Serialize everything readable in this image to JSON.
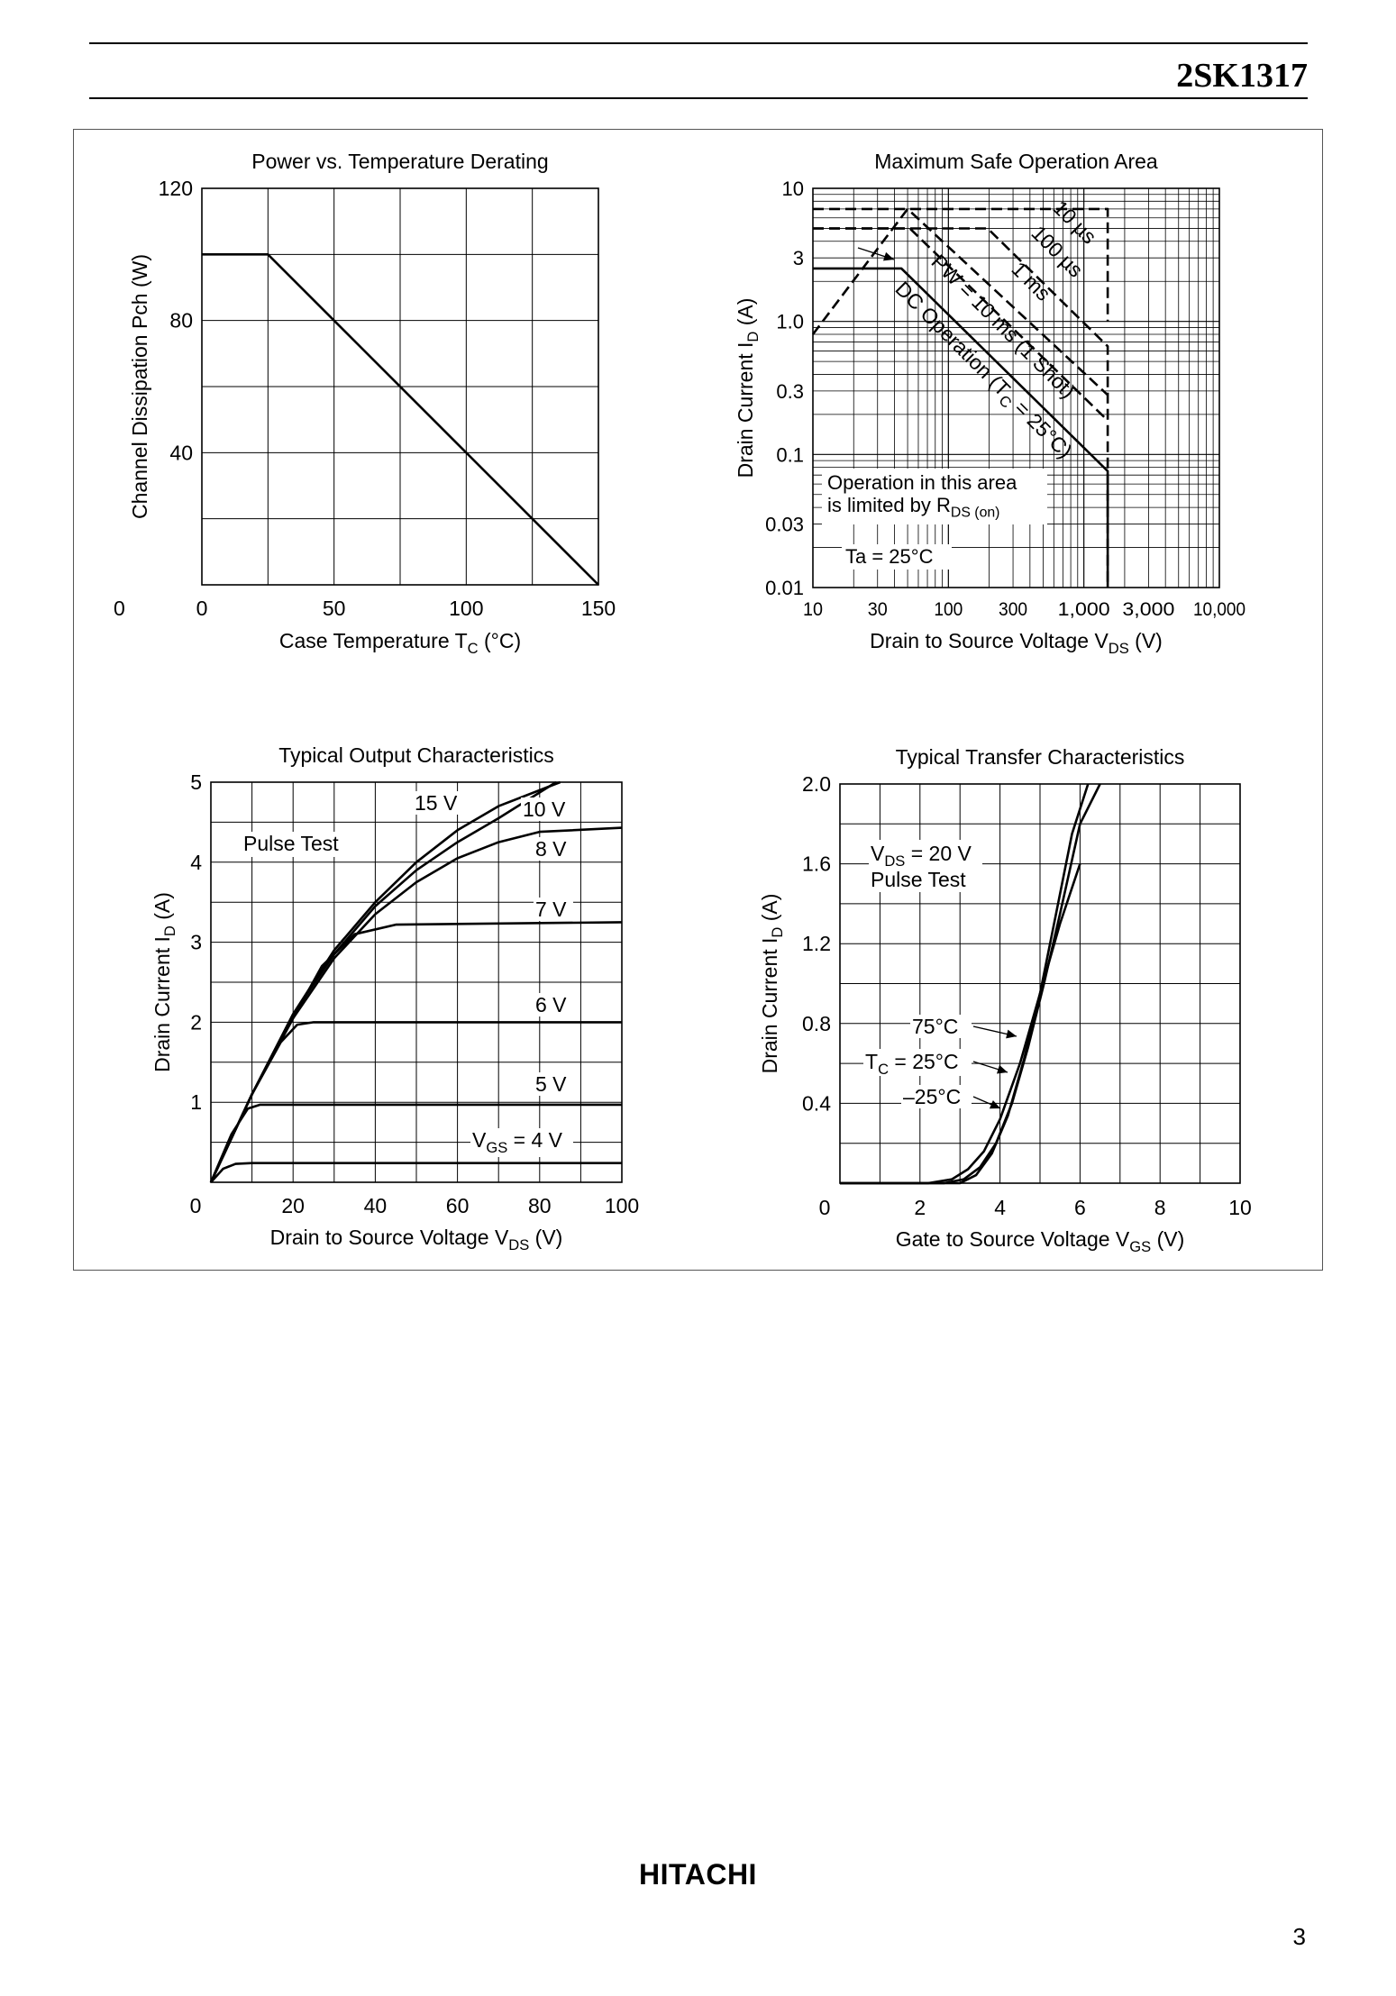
{
  "header": {
    "part_number": "2SK1317"
  },
  "footer": {
    "brand": "HITACHI",
    "page_number": "3"
  },
  "chart_data": [
    {
      "type": "line",
      "title": "Power vs. Temperature Derating",
      "xlabel": "Case Temperature  T",
      "xlabel_sub": "C",
      "xlabel_unit": "  (°C)",
      "ylabel": "Channel Dissipation  Pch  (W)",
      "xlim": [
        0,
        150
      ],
      "ylim": [
        0,
        120
      ],
      "xticks": [
        0,
        50,
        100,
        150
      ],
      "yticks": [
        0,
        40,
        80,
        120
      ],
      "grid": true,
      "series": [
        {
          "x": [
            0,
            25,
            150
          ],
          "y": [
            100,
            100,
            0
          ]
        }
      ]
    },
    {
      "type": "line",
      "title": "Maximum Safe Operation Area",
      "xlabel": "Drain to Source Voltage  V",
      "xlabel_sub": "DS",
      "xlabel_unit": "  (V)",
      "ylabel": "Drain Current  I",
      "ylabel_sub": "D",
      "ylabel_unit": "  (A)",
      "xscale": "log",
      "yscale": "log",
      "xlim": [
        10,
        10000
      ],
      "ylim": [
        0.01,
        10
      ],
      "xtick_labels": [
        "10",
        "30",
        "100",
        "300",
        "1,000",
        "3,000",
        "10,000"
      ],
      "xtick_values": [
        10,
        30,
        100,
        300,
        1000,
        3000,
        10000
      ],
      "ytick_labels": [
        "0.01",
        "0.03",
        "0.1",
        "0.3",
        "1.0",
        "3",
        "10"
      ],
      "ytick_values": [
        0.01,
        0.03,
        0.1,
        0.3,
        1,
        3,
        10
      ],
      "grid": true,
      "series": [
        {
          "name": "10 µs",
          "style": "dashed",
          "x": [
            10,
            1500,
            1500
          ],
          "y": [
            7,
            7,
            1.0
          ]
        },
        {
          "name": "100 µs",
          "style": "dashed",
          "x": [
            10,
            195,
            1500,
            1500
          ],
          "y": [
            5,
            5,
            0.65,
            0.01
          ]
        },
        {
          "name": "1 ms",
          "style": "dashed",
          "x": [
            10,
            52,
            1500
          ],
          "y": [
            5,
            5,
            0.18
          ]
        },
        {
          "name": "PW = 10 ms (1 Shot)",
          "style": "dashed",
          "x": [
            10,
            50,
            1500
          ],
          "y": [
            0.8,
            7,
            0.28
          ]
        },
        {
          "name": "DC Operation (T",
          "style": "solid",
          "x": [
            10,
            45,
            1500,
            1500
          ],
          "y": [
            2.5,
            2.5,
            0.075,
            0.01
          ]
        }
      ],
      "annotations": {
        "label_10us": "10 µs",
        "label_100us": "100 µs",
        "label_1ms": "1 ms",
        "label_pw": "PW = 10 ms (1 Shot)",
        "label_dc": "DC Operation (T",
        "label_dc_sub": "C",
        "label_dc_tail": " = 25°C)",
        "rds_line1": "Operation in this area",
        "rds_line2": "is limited by R",
        "rds_sub": "DS (on)",
        "ta": "Ta = 25°C"
      }
    },
    {
      "type": "line",
      "title": "Typical Output Characteristics",
      "xlabel": "Drain to Source Voltage  V",
      "xlabel_sub": "DS",
      "xlabel_unit": "  (V)",
      "ylabel": "Drain Current  I",
      "ylabel_sub": "D",
      "ylabel_unit": "  (A)",
      "xlim": [
        0,
        100
      ],
      "ylim": [
        0,
        5
      ],
      "xticks": [
        0,
        20,
        40,
        60,
        80,
        100
      ],
      "yticks": [
        0,
        1,
        2,
        3,
        4,
        5
      ],
      "grid": true,
      "series": [
        {
          "name": "15 V",
          "x": [
            0,
            10,
            20,
            30,
            40,
            50,
            60,
            70,
            85
          ],
          "y": [
            0,
            1.1,
            2.1,
            2.9,
            3.5,
            4.0,
            4.4,
            4.7,
            5.0
          ]
        },
        {
          "name": "10 V",
          "x": [
            0,
            10,
            20,
            30,
            40,
            50,
            60,
            70,
            84
          ],
          "y": [
            0,
            1.1,
            2.1,
            2.85,
            3.45,
            3.9,
            4.25,
            4.55,
            5.0
          ]
        },
        {
          "name": "8 V",
          "x": [
            0,
            10,
            20,
            30,
            40,
            50,
            60,
            70,
            80,
            100
          ],
          "y": [
            0,
            1.1,
            2.05,
            2.8,
            3.35,
            3.75,
            4.05,
            4.25,
            4.38,
            4.43
          ]
        },
        {
          "name": "7 V",
          "x": [
            0,
            10,
            20,
            27,
            35,
            45,
            100
          ],
          "y": [
            0,
            1.1,
            2.05,
            2.7,
            3.1,
            3.22,
            3.25
          ]
        },
        {
          "name": "6 V",
          "x": [
            0,
            10,
            17,
            21,
            25,
            100
          ],
          "y": [
            0,
            1.1,
            1.75,
            1.97,
            2.0,
            2.0
          ]
        },
        {
          "name": "5 V",
          "x": [
            0,
            5,
            9,
            12,
            100
          ],
          "y": [
            0,
            0.6,
            0.92,
            0.97,
            0.97
          ]
        },
        {
          "name": "4 V",
          "x": [
            0,
            3,
            6,
            10,
            100
          ],
          "y": [
            0,
            0.17,
            0.23,
            0.24,
            0.24
          ]
        }
      ],
      "annotations": {
        "pulse_test": "Pulse Test",
        "label_15": "15 V",
        "label_10": "10 V",
        "label_8": "8 V",
        "label_7": "7 V",
        "label_6": "6 V",
        "label_5": "5 V",
        "label_4_prefix": "V",
        "label_4_sub": "GS",
        "label_4_tail": " = 4 V"
      }
    },
    {
      "type": "line",
      "title": "Typical Transfer Characteristics",
      "xlabel": "Gate to Source Voltage  V",
      "xlabel_sub": "GS",
      "xlabel_unit": "  (V)",
      "ylabel": "Drain Current  I",
      "ylabel_sub": "D",
      "ylabel_unit": "  (A)",
      "xlim": [
        0,
        10
      ],
      "ylim": [
        0,
        2.0
      ],
      "xticks": [
        0,
        2,
        4,
        6,
        8,
        10
      ],
      "ytick_labels": [
        "0.4",
        "0.8",
        "1.2",
        "1.6",
        "2.0"
      ],
      "ytick_values": [
        0.4,
        0.8,
        1.2,
        1.6,
        2.0
      ],
      "zero_label": "0",
      "grid": true,
      "series": [
        {
          "name": "75°C",
          "x": [
            0,
            2.2,
            2.8,
            3.2,
            3.6,
            4.0,
            4.5,
            5.0,
            5.5,
            6.0
          ],
          "y": [
            0,
            0,
            0.02,
            0.07,
            0.16,
            0.32,
            0.6,
            0.95,
            1.3,
            1.6
          ]
        },
        {
          "name": "25°C",
          "x": [
            0,
            2.6,
            3.1,
            3.5,
            3.9,
            4.3,
            4.7,
            5.1,
            5.5,
            6.0,
            6.5
          ],
          "y": [
            0,
            0,
            0.02,
            0.08,
            0.2,
            0.4,
            0.68,
            1.0,
            1.35,
            1.8,
            2.0
          ]
        },
        {
          "name": "–25°C",
          "x": [
            0,
            3.0,
            3.4,
            3.8,
            4.2,
            4.6,
            5.0,
            5.4,
            5.8,
            6.2
          ],
          "y": [
            0,
            0,
            0.04,
            0.15,
            0.34,
            0.62,
            0.95,
            1.35,
            1.75,
            2.0
          ]
        }
      ],
      "annotations": {
        "vds_prefix": "V",
        "vds_sub": "DS",
        "vds_tail": " = 20 V",
        "pulse_test": "Pulse Test",
        "t75": "75°C",
        "t25_prefix": "T",
        "t25_sub": "C",
        "t25_tail": " = 25°C",
        "tm25": "–25°C"
      }
    }
  ]
}
